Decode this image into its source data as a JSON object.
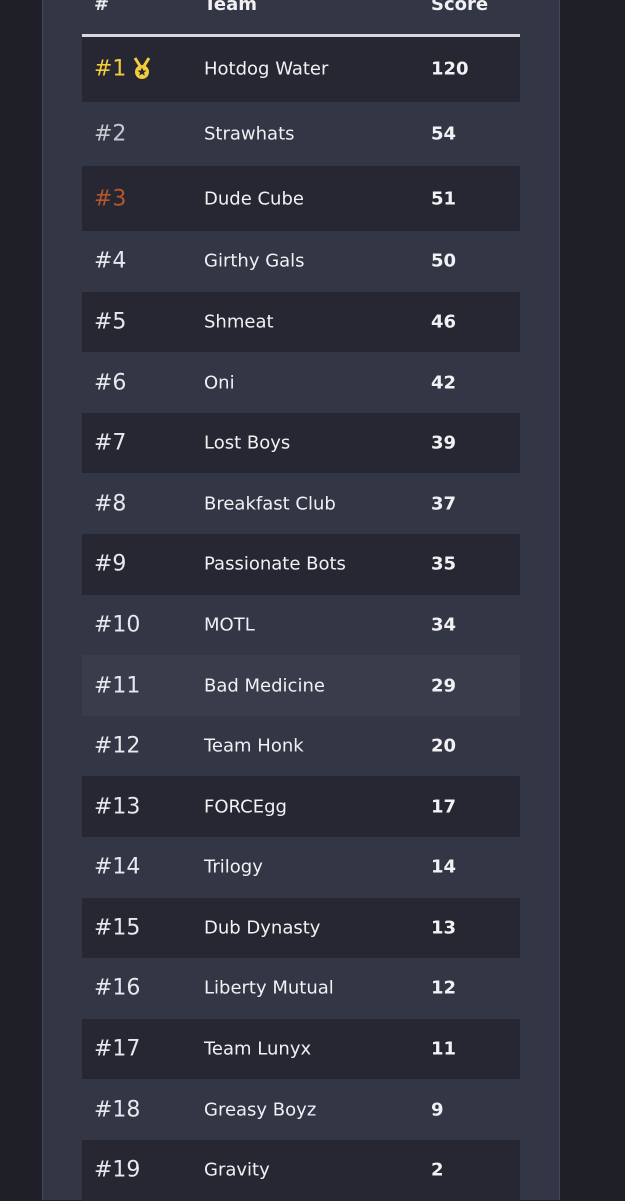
{
  "table": {
    "header": [
      "#",
      "Team",
      "Score"
    ],
    "rows": [
      [
        "#1",
        "Hotdog Water",
        "120"
      ],
      [
        "#2",
        "Strawhats",
        "54"
      ],
      [
        "#3",
        "Dude Cube",
        "51"
      ],
      [
        "#4",
        "Girthy Gals",
        "50"
      ],
      [
        "#5",
        "Shmeat",
        "46"
      ],
      [
        "#6",
        "Oni",
        "42"
      ],
      [
        "#7",
        "Lost Boys",
        "39"
      ],
      [
        "#8",
        "Breakfast Club",
        "37"
      ],
      [
        "#9",
        "Passionate Bots",
        "35"
      ],
      [
        "#10",
        "MOTL",
        "34"
      ],
      [
        "#11",
        "Bad Medicine",
        "29"
      ],
      [
        "#12",
        "Team Honk",
        "20"
      ],
      [
        "#13",
        "FORCEgg",
        "17"
      ],
      [
        "#14",
        "Trilogy",
        "14"
      ],
      [
        "#15",
        "Dub Dynasty",
        "13"
      ],
      [
        "#16",
        "Liberty Mutual",
        "12"
      ],
      [
        "#17",
        "Team Lunyx",
        "11"
      ],
      [
        "#18",
        "Greasy Boyz",
        "9"
      ],
      [
        "#19",
        "Gravity",
        "2"
      ]
    ]
  }
}
